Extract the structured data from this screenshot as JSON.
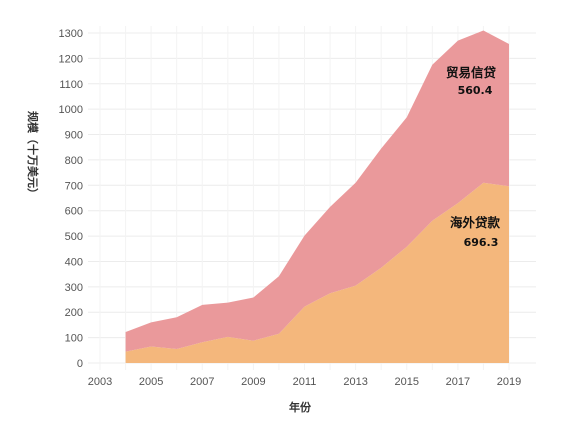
{
  "chart_data": {
    "type": "area",
    "stacked": true,
    "xlabel": "年份",
    "ylabel": "规模（十万美元）",
    "xlim": [
      2003,
      2019
    ],
    "ylim": [
      0,
      1350
    ],
    "grid": true,
    "x": [
      2004,
      2005,
      2006,
      2007,
      2008,
      2009,
      2010,
      2011,
      2012,
      2013,
      2014,
      2015,
      2016,
      2017,
      2018,
      2019
    ],
    "x_ticks": [
      "2003",
      "2005",
      "2007",
      "2009",
      "2011",
      "2013",
      "2015",
      "2017",
      "2019"
    ],
    "y_ticks": [
      "0",
      "100",
      "200",
      "300",
      "400",
      "500",
      "600",
      "700",
      "800",
      "900",
      "1000",
      "1100",
      "1200",
      "1300"
    ],
    "series": [
      {
        "name": "海外贷款",
        "color": "#f4b77c",
        "values": [
          45,
          65,
          55,
          82,
          103,
          88,
          115,
          222,
          275,
          305,
          375,
          458,
          560,
          630,
          710,
          696.3
        ],
        "label_value": "696.3"
      },
      {
        "name": "贸易信贷",
        "color": "#ea999b",
        "values": [
          77,
          95,
          125,
          147,
          135,
          170,
          227,
          280,
          340,
          405,
          470,
          510,
          615,
          640,
          600,
          560.4
        ],
        "label_value": "560.4"
      }
    ]
  }
}
